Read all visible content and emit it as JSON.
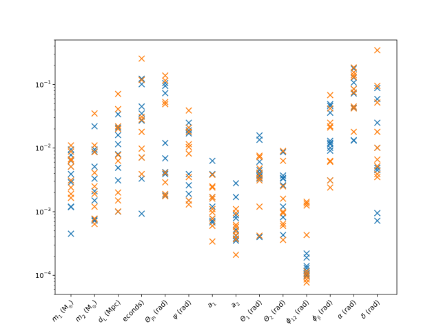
{
  "chart_data": {
    "type": "scatter",
    "marker": "x",
    "categories": [
      "m1 (M⊙)",
      "m2 (M⊙)",
      "dL (Mpc)",
      "tc (seconds)",
      "Θjn (rad)",
      "ψ (rad)",
      "a1",
      "a2",
      "Θ1 (rad)",
      "Θ2 (rad)",
      "ϕ12 (rad)",
      "ϕjl (rad)",
      "α (rad)",
      "δ (rad)"
    ],
    "category_labels": [
      {
        "sym": "m",
        "sub": "1",
        "rest": " (M",
        "sub2": "⊙",
        "end": ")"
      },
      {
        "sym": "m",
        "sub": "2",
        "rest": " (M",
        "sub2": "⊙",
        "end": ")"
      },
      {
        "sym": "d",
        "sub": "L",
        "rest": " (Mpc)",
        "sub2": "",
        "end": ""
      },
      {
        "sym": "",
        "sub": "",
        "rest": "econds)",
        "sub2": "",
        "end": ""
      },
      {
        "sym": "Θ",
        "sub": "jn",
        "rest": " (rad)",
        "sub2": "",
        "end": ""
      },
      {
        "sym": "ψ",
        "sub": "",
        "rest": " (rad)",
        "sub2": "",
        "end": ""
      },
      {
        "sym": "a",
        "sub": "1",
        "rest": "",
        "sub2": "",
        "end": ""
      },
      {
        "sym": "a",
        "sub": "2",
        "rest": "",
        "sub2": "",
        "end": ""
      },
      {
        "sym": "Θ",
        "sub": "1",
        "rest": " (rad)",
        "sub2": "",
        "end": ""
      },
      {
        "sym": "Θ",
        "sub": "2",
        "rest": " (rad)",
        "sub2": "",
        "end": ""
      },
      {
        "sym": "ϕ",
        "sub": "12",
        "rest": " (rad)",
        "sub2": "",
        "end": ""
      },
      {
        "sym": "ϕ",
        "sub": "jl",
        "rest": " (rad)",
        "sub2": "",
        "end": ""
      },
      {
        "sym": "α",
        "sub": "",
        "rest": " (rad)",
        "sub2": "",
        "end": ""
      },
      {
        "sym": "δ",
        "sub": "",
        "rest": " (rad)",
        "sub2": "",
        "end": ""
      }
    ],
    "yscale": "log",
    "ylim": [
      5e-05,
      0.5
    ],
    "yticks": [
      {
        "value": 0.0001,
        "mantissa": "10",
        "exp": "−4"
      },
      {
        "value": 0.001,
        "mantissa": "10",
        "exp": "−3"
      },
      {
        "value": 0.01,
        "mantissa": "10",
        "exp": "−2"
      },
      {
        "value": 0.1,
        "mantissa": "10",
        "exp": "−1"
      }
    ],
    "grid": false,
    "title": "",
    "xlabel": "",
    "ylabel": "",
    "series": [
      {
        "color": "#1f77b4",
        "values": [
          [
            0.0095,
            0.0078,
            0.0063,
            0.0051,
            0.0039,
            0.0031,
            0.0029,
            0.0012,
            0.00118,
            0.00045
          ],
          [
            0.022,
            0.0095,
            0.0088,
            0.0051,
            0.0033,
            0.0021,
            0.0015,
            0.00075,
            0.00072
          ],
          [
            0.034,
            0.021,
            0.016,
            0.0115,
            0.008,
            0.0049,
            0.0031,
            0.001
          ],
          [
            0.123,
            0.101,
            0.045,
            0.035,
            0.027,
            0.0071,
            0.0033,
            0.00093
          ],
          [
            0.105,
            0.095,
            0.073,
            0.012,
            0.0069,
            0.0042,
            0.0039,
            0.0018
          ],
          [
            0.025,
            0.021,
            0.019,
            0.017,
            0.0039,
            0.0026,
            0.0019,
            0.0015
          ],
          [
            0.0063,
            0.0039,
            0.0017,
            0.0012,
            0.00078,
            0.00072,
            0.00068
          ],
          [
            0.0028,
            0.0017,
            0.00088,
            0.00079,
            0.00052,
            0.00042,
            0.00038,
            0.00035
          ],
          [
            0.0158,
            0.0135,
            0.0061,
            0.0045,
            0.0041,
            0.0038,
            0.0036,
            0.0033,
            0.0004
          ],
          [
            0.0086,
            0.0037,
            0.0034,
            0.0033,
            0.0026,
            0.0012,
            0.00082,
            0.00043
          ],
          [
            0.00022,
            0.00019,
            0.00014,
            0.00013,
            0.000118,
            0.000108,
            0.000103,
            9.9e-05
          ],
          [
            0.049,
            0.046,
            0.036,
            0.013,
            0.0121,
            0.0115,
            0.0101,
            0.0091,
            0.0031
          ],
          [
            0.178,
            0.128,
            0.107,
            0.085,
            0.072,
            0.043,
            0.0133,
            0.0131
          ],
          [
            0.088,
            0.059,
            0.025,
            0.0101,
            0.0049,
            0.0045,
            0.00095,
            0.00072
          ]
        ]
      },
      {
        "color": "#ff7f0e",
        "values": [
          [
            0.011,
            0.0088,
            0.0067,
            0.0064,
            0.0051,
            0.0031,
            0.0024,
            0.0019,
            0.00165
          ],
          [
            0.035,
            0.011,
            0.0086,
            0.0041,
            0.0025,
            0.0019,
            0.0012,
            0.00078,
            0.00064
          ],
          [
            0.071,
            0.041,
            0.022,
            0.02,
            0.0078,
            0.0063,
            0.002,
            0.0015,
            0.00101
          ],
          [
            0.255,
            0.118,
            0.031,
            0.028,
            0.018,
            0.0098,
            0.0071,
            0.0039
          ],
          [
            0.138,
            0.115,
            0.053,
            0.049,
            0.0041,
            0.0029,
            0.0019,
            0.00175
          ],
          [
            0.039,
            0.021,
            0.018,
            0.0115,
            0.0104,
            0.0082,
            0.0035,
            0.0015,
            0.0013
          ],
          [
            0.0038,
            0.0025,
            0.0024,
            0.0017,
            0.0016,
            0.0011,
            0.00098,
            0.00078,
            0.0006,
            0.00034
          ],
          [
            0.0011,
            0.00095,
            0.00062,
            0.00058,
            0.00049,
            0.00043,
            0.00037,
            0.00021
          ],
          [
            0.0076,
            0.0072,
            0.0048,
            0.0039,
            0.0034,
            0.0031,
            0.0012,
            0.00042
          ],
          [
            0.009,
            0.0063,
            0.0025,
            0.0016,
            0.001,
            0.00095,
            0.00065,
            0.0006,
            0.00036
          ],
          [
            0.00143,
            0.00135,
            0.00125,
            0.00043,
            0.000115,
            0.000105,
            9.5e-05,
            8.6e-05,
            7.7e-05
          ],
          [
            0.068,
            0.042,
            0.025,
            0.022,
            0.021,
            0.0063,
            0.0061,
            0.0031,
            0.0024
          ],
          [
            0.185,
            0.155,
            0.14,
            0.131,
            0.085,
            0.075,
            0.045,
            0.042,
            0.018
          ],
          [
            0.345,
            0.095,
            0.052,
            0.018,
            0.0101,
            0.0066,
            0.0052,
            0.0039,
            0.0035
          ]
        ]
      }
    ]
  }
}
